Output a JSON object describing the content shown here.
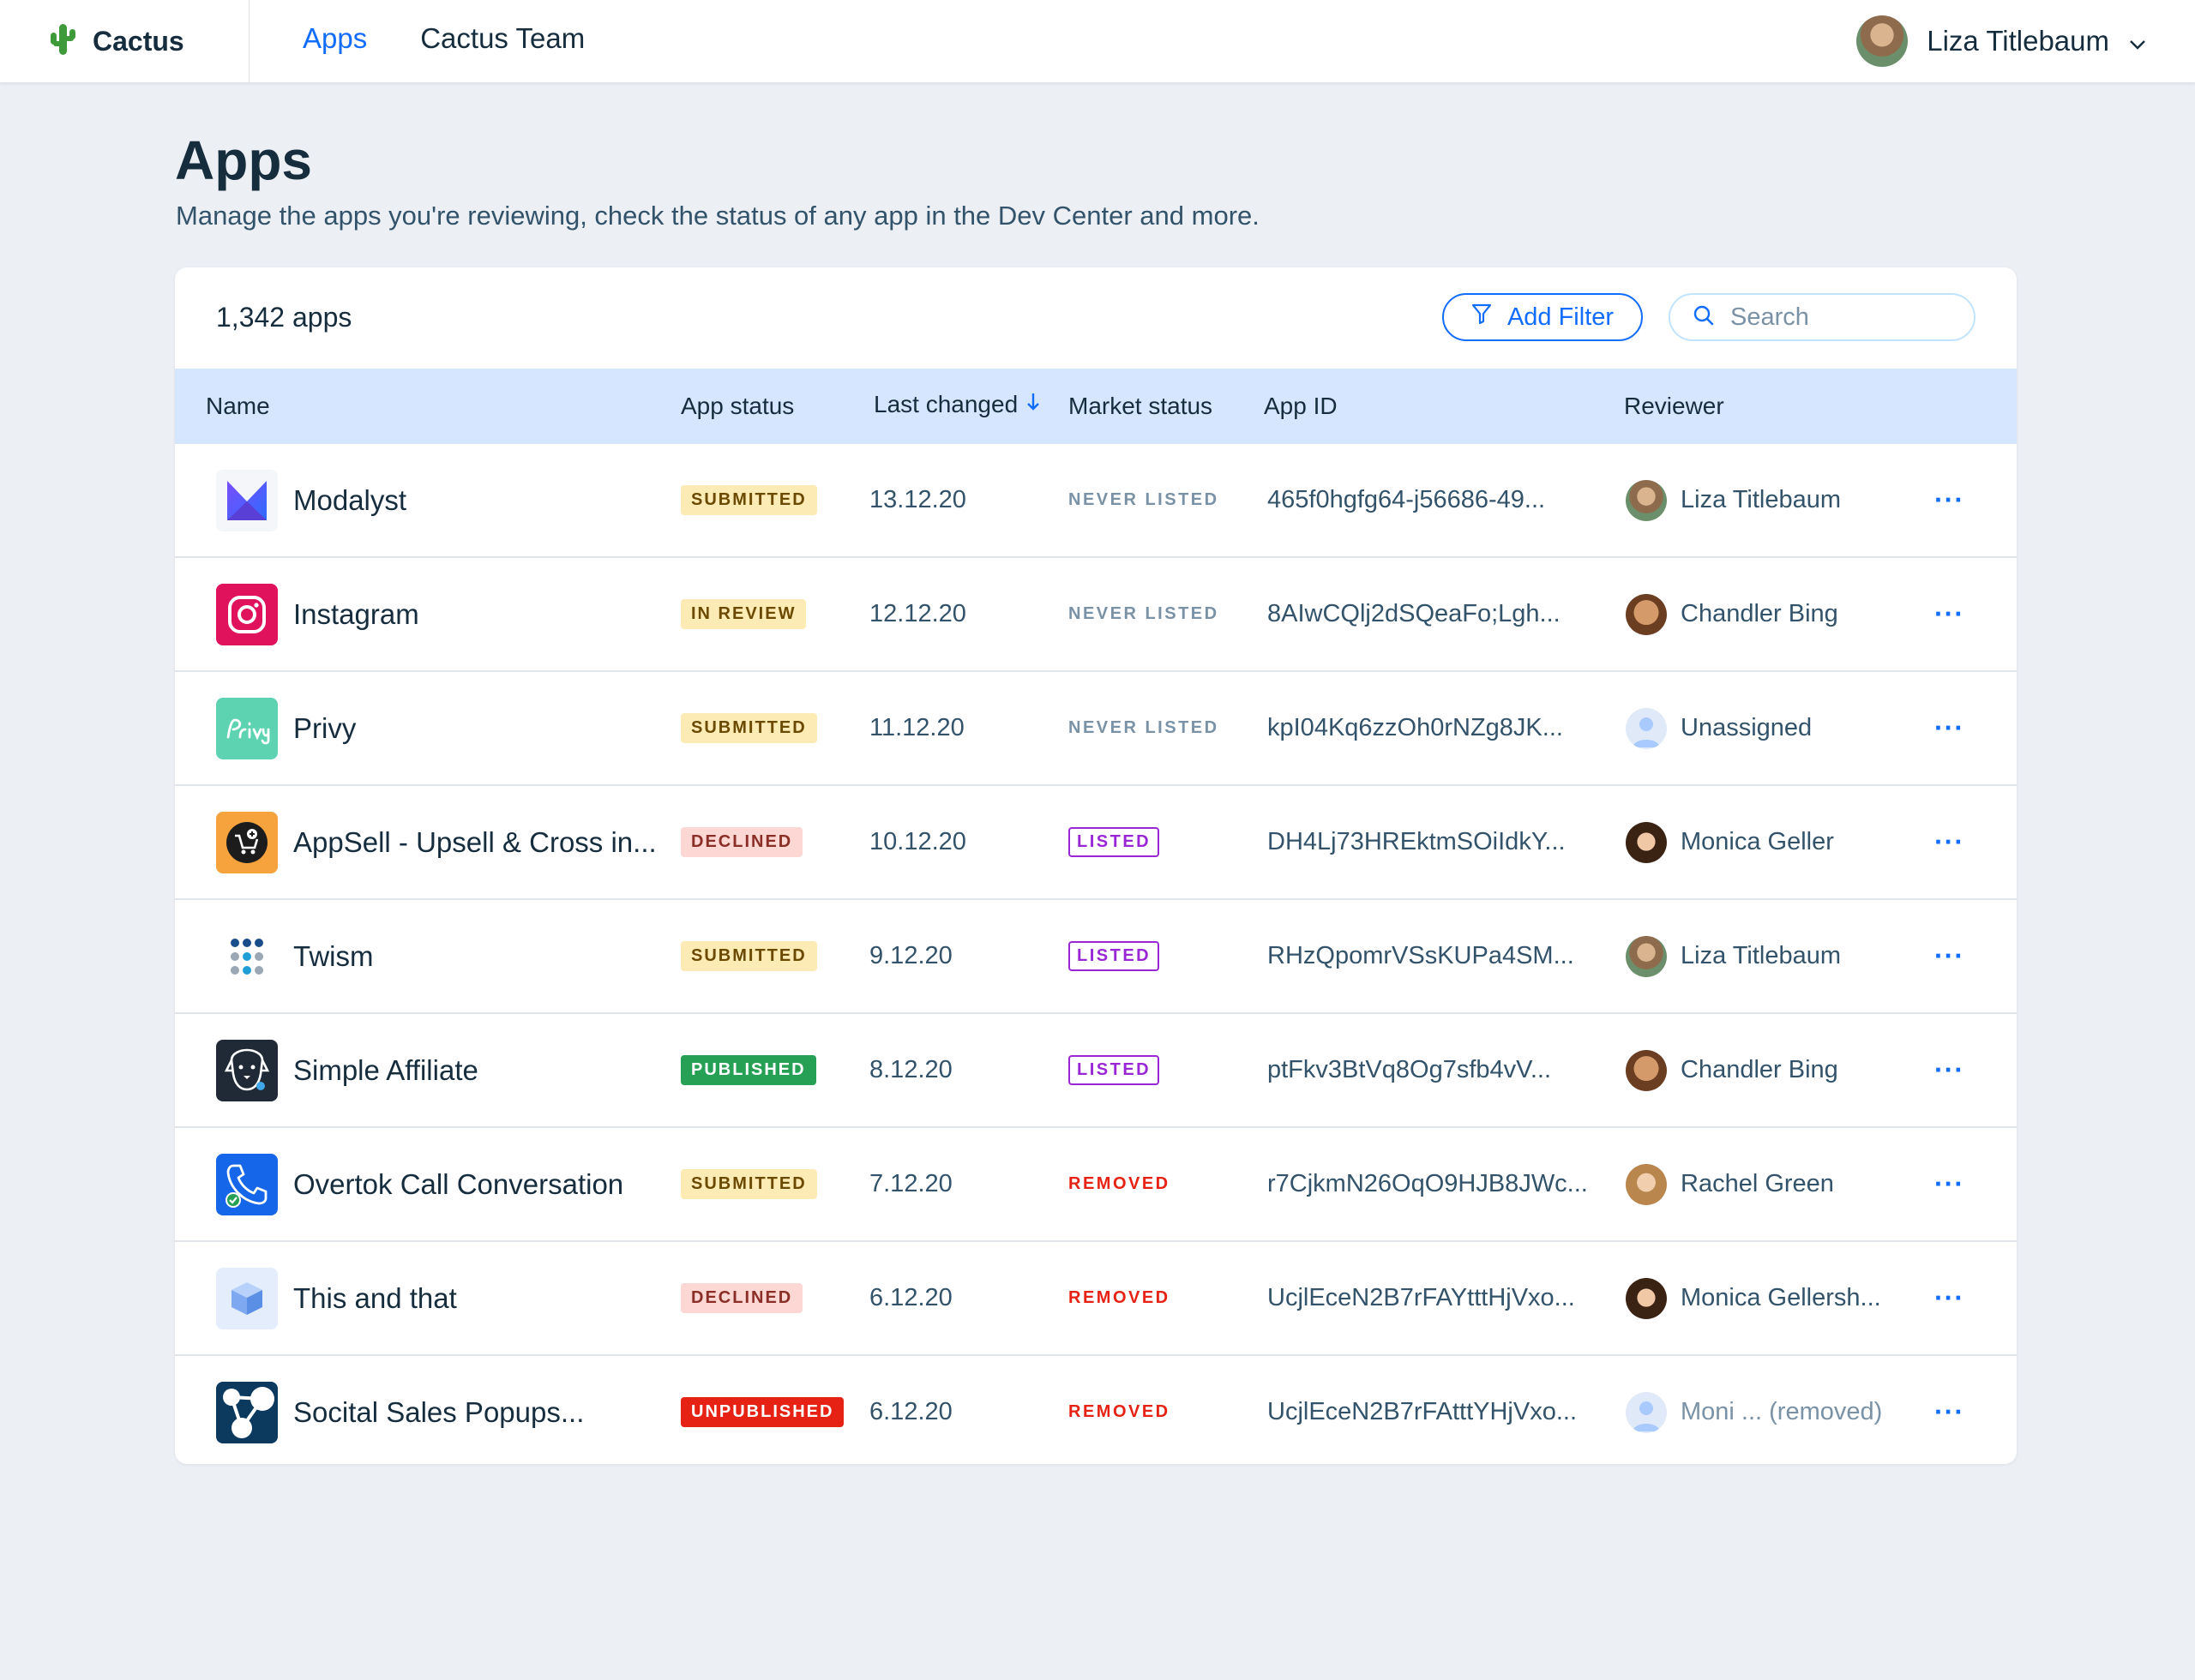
{
  "topbar": {
    "brand": "Cactus",
    "nav": [
      "Apps",
      "Cactus Team"
    ],
    "user_name": "Liza Titlebaum"
  },
  "page": {
    "title": "Apps",
    "subtitle": "Manage the apps you're reviewing, check the status of any app in the Dev Center and more."
  },
  "toolbar": {
    "count": "1,342 apps",
    "filter_label": "Add Filter",
    "search_placeholder": "Search"
  },
  "table": {
    "columns": [
      "Name",
      "App status",
      "Last changed",
      "Market status",
      "App ID",
      "Reviewer"
    ],
    "rows": [
      {
        "name": "Modalyst",
        "icon": "modalyst-icon",
        "status": "SUBMITTED",
        "date": "13.12.20",
        "market": "NEVER LISTED",
        "app_id": "465f0hgfg64-j56686-49...",
        "reviewer": "Liza Titlebaum"
      },
      {
        "name": "Instagram",
        "icon": "instagram-icon",
        "status": "IN REVIEW",
        "date": "12.12.20",
        "market": "NEVER LISTED",
        "app_id": "8AIwCQlj2dSQeaFo;Lgh...",
        "reviewer": "Chandler Bing"
      },
      {
        "name": "Privy",
        "icon": "privy-icon",
        "status": "SUBMITTED",
        "date": "11.12.20",
        "market": "NEVER LISTED",
        "app_id": "kpI04Kq6zzOh0rNZg8JK...",
        "reviewer": "Unassigned"
      },
      {
        "name": "AppSell - Upsell & Cross in...",
        "icon": "appsell-icon",
        "status": "DECLINED",
        "date": "10.12.20",
        "market": "LISTED",
        "app_id": "DH4Lj73HREktmSOiIdkY...",
        "reviewer": "Monica Geller"
      },
      {
        "name": "Twism",
        "icon": "twism-icon",
        "status": "SUBMITTED",
        "date": "9.12.20",
        "market": "LISTED",
        "app_id": "RHzQpomrVSsKUPa4SM...",
        "reviewer": "Liza Titlebaum"
      },
      {
        "name": "Simple Affiliate",
        "icon": "simple-affiliate-icon",
        "status": "PUBLISHED",
        "date": "8.12.20",
        "market": "LISTED",
        "app_id": "ptFkv3BtVq8Og7sfb4vV...",
        "reviewer": "Chandler Bing"
      },
      {
        "name": "Overtok Call Conversation",
        "icon": "overtok-icon",
        "status": "SUBMITTED",
        "date": "7.12.20",
        "market": "REMOVED",
        "app_id": "r7CjkmN26OqO9HJB8JWc...",
        "reviewer": "Rachel Green"
      },
      {
        "name": "This and that",
        "icon": "cube-icon",
        "status": "DECLINED",
        "date": "6.12.20",
        "market": "REMOVED",
        "app_id": "UcjlEceN2B7rFAYtttHjVxo...",
        "reviewer": "Monica Gellersh..."
      },
      {
        "name": "Socital Sales Popups...",
        "icon": "socital-icon",
        "status": "UNPUBLISHED",
        "date": "6.12.20",
        "market": "REMOVED",
        "app_id": "UcjlEceN2B7rFAtttYHjVxo...",
        "reviewer": "Moni ... (removed)"
      }
    ]
  },
  "colors": {
    "accent": "#116dff",
    "header_row": "#d6e6fe",
    "background": "#eceff4"
  }
}
